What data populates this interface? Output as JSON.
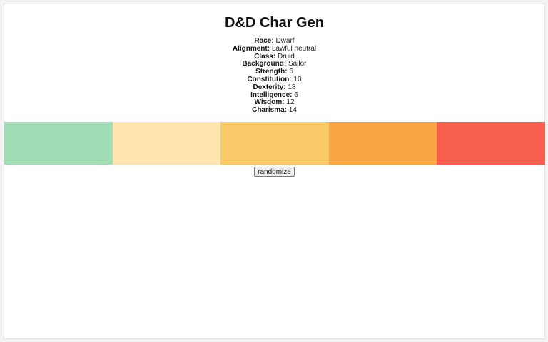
{
  "app": {
    "title": "D&D Char Gen"
  },
  "character": {
    "stats": [
      {
        "label": "Race:",
        "value": "Dwarf"
      },
      {
        "label": "Alignment:",
        "value": "Lawful neutral"
      },
      {
        "label": "Class:",
        "value": "Druid"
      },
      {
        "label": "Background:",
        "value": "Sailor"
      },
      {
        "label": "Strength:",
        "value": "6"
      },
      {
        "label": "Constitution:",
        "value": "10"
      },
      {
        "label": "Dexterity:",
        "value": "18"
      },
      {
        "label": "Intelligence:",
        "value": "6"
      },
      {
        "label": "Wisdom:",
        "value": "12"
      },
      {
        "label": "Charisma:",
        "value": "14"
      }
    ]
  },
  "palette": {
    "colors": [
      "#a2dcb4",
      "#fde4ad",
      "#faca68",
      "#f8a543",
      "#f65e4e"
    ]
  },
  "actions": {
    "randomize_label": "randomize"
  }
}
